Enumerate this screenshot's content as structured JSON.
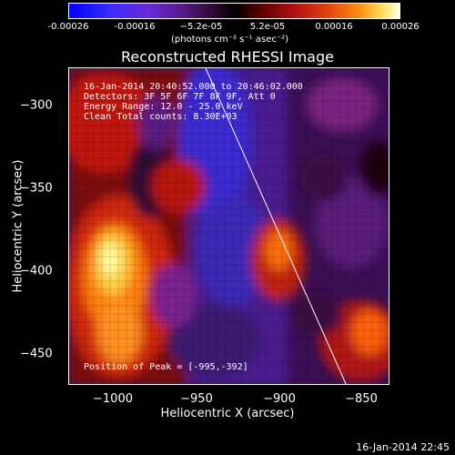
{
  "colorbar": {
    "ticks": [
      "-0.00026",
      "-0.00016",
      "−5.2e-05",
      "5.2e-05",
      "0.00016",
      "0.00026"
    ],
    "units": "(photons cm⁻² s⁻¹ asec⁻²)"
  },
  "title": "Reconstructed RHESSI Image",
  "annotations": {
    "time_range": "16-Jan-2014 20:40:52.000 to 20:46:02.000",
    "detectors": "Detectors: 3F 5F 6F 7F 8F 9F, Att 0",
    "energy": "Energy Range: 12.0 - 25.0 keV",
    "clean": "Clean    Total counts: 8.30E+03",
    "peak": "Position of Peak = [-995,-392]"
  },
  "axes": {
    "xlabel": "Heliocentric X (arcsec)",
    "ylabel": "Heliocentric Y (arcsec)",
    "xticks": [
      "−1000",
      "−950",
      "−900",
      "−850"
    ],
    "yticks": [
      "−300",
      "−350",
      "−400",
      "−450"
    ]
  },
  "timestamp": "16-Jan-2014 22:45"
}
